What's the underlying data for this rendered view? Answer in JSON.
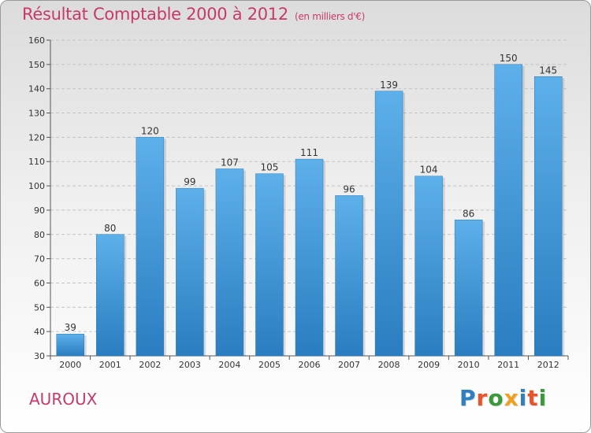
{
  "title": "Résultat Comptable 2000 à 2012",
  "subtitle": "(en milliers d'€)",
  "commune": "AUROUX",
  "logo": {
    "text": "Proxiti",
    "letters": [
      {
        "char": "P",
        "color": "#2f7fc1"
      },
      {
        "char": "r",
        "color": "#e8542b"
      },
      {
        "char": "o",
        "color": "#3a9a3a"
      },
      {
        "char": "x",
        "color": "#f0a020"
      },
      {
        "char": "i",
        "color": "#2f7fc1"
      },
      {
        "char": "t",
        "color": "#e8542b"
      },
      {
        "char": "i",
        "color": "#3a9a3a"
      }
    ]
  },
  "colors": {
    "title": "#c8396b",
    "bar_top": "#5db0ea",
    "bar_bottom": "#2a7dc0",
    "axis": "#555555",
    "grid": "#c4c4c4"
  },
  "chart_data": {
    "type": "bar",
    "title": "Résultat Comptable 2000 à 2012",
    "xlabel": "",
    "ylabel": "",
    "ylim": [
      30,
      160
    ],
    "yticks": [
      30,
      40,
      50,
      60,
      70,
      80,
      90,
      100,
      110,
      120,
      130,
      140,
      150,
      160
    ],
    "grid": "horizontal dashed",
    "categories": [
      "2000",
      "2001",
      "2002",
      "2003",
      "2004",
      "2005",
      "2006",
      "2007",
      "2008",
      "2009",
      "2010",
      "2011",
      "2012"
    ],
    "values": [
      39,
      80,
      120,
      99,
      107,
      105,
      111,
      96,
      139,
      104,
      86,
      150,
      145
    ]
  }
}
